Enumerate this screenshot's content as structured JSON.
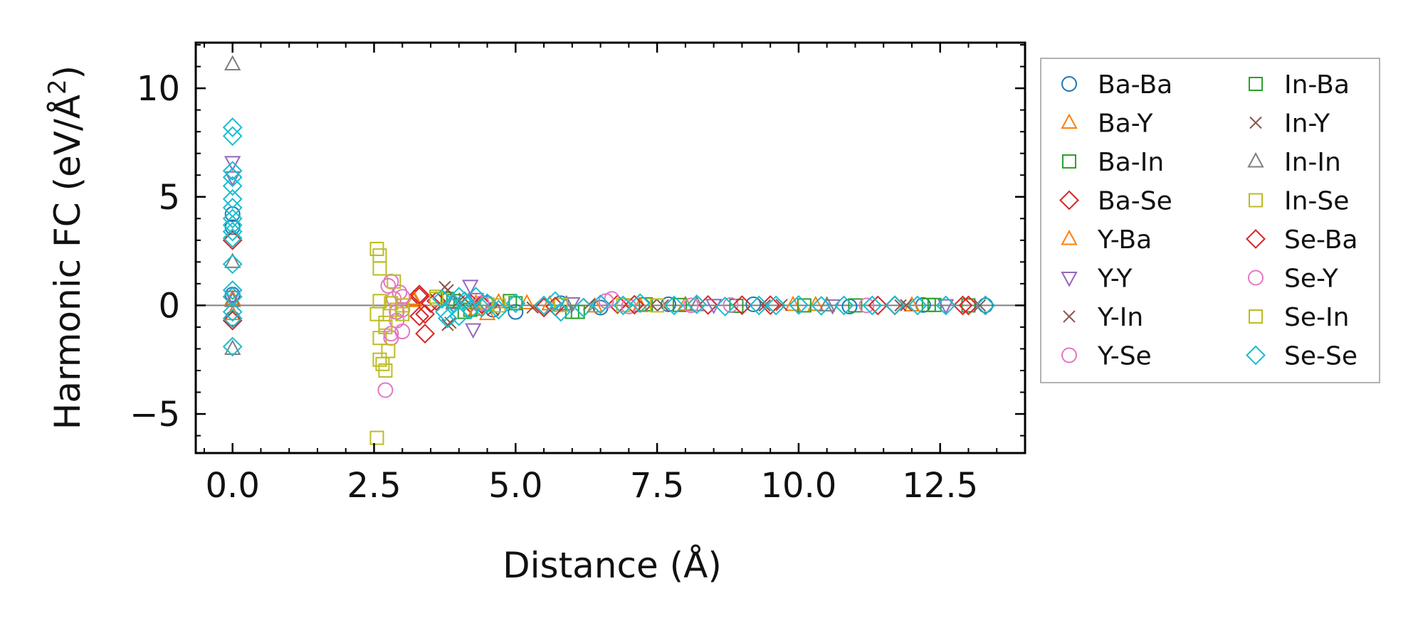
{
  "chart_data": {
    "type": "scatter",
    "title": "",
    "xlabel": "Distance (Å)",
    "ylabel_main": "Harmonic FC (eV/Å",
    "ylabel_sup": "2",
    "ylabel_close": ")",
    "xlim": [
      -0.65,
      14.0
    ],
    "ylim": [
      -6.8,
      12.1
    ],
    "xticks": [
      0.0,
      2.5,
      5.0,
      7.5,
      10.0,
      12.5
    ],
    "xtick_labels": [
      "0.0",
      "2.5",
      "5.0",
      "7.5",
      "10.0",
      "12.5"
    ],
    "yticks": [
      -5,
      0,
      5,
      10
    ],
    "ytick_labels": [
      "−5",
      "0",
      "5",
      "10"
    ],
    "zero_line": 0,
    "legend_position": "outside-right",
    "series": [
      {
        "name": "Ba-Ba",
        "marker": "circle",
        "color": "#1f77b4",
        "points": [
          [
            0,
            0.5
          ],
          [
            0,
            -0.6
          ],
          [
            0,
            4.2
          ],
          [
            0,
            3.6
          ],
          [
            4.5,
            0.1
          ],
          [
            4.6,
            -0.2
          ],
          [
            5.0,
            -0.3
          ],
          [
            5.8,
            0.1
          ],
          [
            6.5,
            -0.1
          ],
          [
            7.7,
            0.05
          ],
          [
            9.2,
            0.05
          ],
          [
            10.9,
            -0.05
          ],
          [
            12.2,
            0.02
          ],
          [
            13.3,
            0.0
          ]
        ]
      },
      {
        "name": "Ba-Y",
        "marker": "triangle-up",
        "color": "#ff7f0e",
        "points": [
          [
            0,
            0.3
          ],
          [
            0,
            -0.4
          ],
          [
            3.2,
            0.2
          ],
          [
            4.3,
            0.1
          ],
          [
            4.5,
            -0.4
          ],
          [
            5.2,
            0.1
          ],
          [
            6.4,
            -0.05
          ],
          [
            8.0,
            0.03
          ],
          [
            10.3,
            0.02
          ],
          [
            12.0,
            0.0
          ]
        ]
      },
      {
        "name": "Ba-In",
        "marker": "square",
        "color": "#2ca02c",
        "points": [
          [
            3.8,
            0.3
          ],
          [
            4.1,
            -0.3
          ],
          [
            4.9,
            0.2
          ],
          [
            6.0,
            -0.3
          ],
          [
            7.3,
            0.05
          ],
          [
            8.9,
            -0.02
          ],
          [
            11.0,
            0.0
          ],
          [
            12.4,
            0.02
          ],
          [
            13.0,
            0.0
          ]
        ]
      },
      {
        "name": "Ba-Se",
        "marker": "diamond",
        "color": "#d62728",
        "points": [
          [
            0,
            0.4
          ],
          [
            0,
            -0.7
          ],
          [
            0,
            3.0
          ],
          [
            3.3,
            0.4
          ],
          [
            3.3,
            -0.5
          ],
          [
            3.4,
            -1.3
          ],
          [
            3.6,
            0.2
          ],
          [
            4.2,
            0.1
          ],
          [
            5.5,
            -0.1
          ],
          [
            6.8,
            0.05
          ],
          [
            8.4,
            0.02
          ],
          [
            9.5,
            0.01
          ],
          [
            11.7,
            0.0
          ],
          [
            12.9,
            0.0
          ],
          [
            13.3,
            0.0
          ]
        ]
      },
      {
        "name": "Y-Ba",
        "marker": "triangle-up",
        "color": "#ff7f0e",
        "points": [
          [
            3.2,
            0.3
          ],
          [
            4.3,
            -0.2
          ],
          [
            4.7,
            0.15
          ],
          [
            5.6,
            0.05
          ],
          [
            7.2,
            -0.03
          ],
          [
            9.9,
            0.02
          ]
        ]
      },
      {
        "name": "Y-Y",
        "marker": "triangle-down",
        "color": "#9467bd",
        "points": [
          [
            0,
            6.6
          ],
          [
            0,
            5.9
          ],
          [
            0,
            0.4
          ],
          [
            4.2,
            0.9
          ],
          [
            4.25,
            -1.1
          ],
          [
            4.3,
            0.3
          ],
          [
            6.0,
            0.1
          ],
          [
            8.5,
            0.02
          ],
          [
            10.6,
            0.0
          ],
          [
            12.6,
            0.01
          ]
        ]
      },
      {
        "name": "Y-In",
        "marker": "x",
        "color": "#8c564b",
        "points": [
          [
            3.75,
            0.85
          ],
          [
            3.8,
            -0.9
          ],
          [
            4.0,
            0.2
          ],
          [
            4.6,
            -0.2
          ],
          [
            6.3,
            0.05
          ],
          [
            7.6,
            0.0
          ],
          [
            9.7,
            0.02
          ],
          [
            11.8,
            0.0
          ],
          [
            13.2,
            0.0
          ]
        ]
      },
      {
        "name": "Y-Se",
        "marker": "circle",
        "color": "#e377c2",
        "points": [
          [
            2.7,
            -3.9
          ],
          [
            2.8,
            1.1
          ],
          [
            2.8,
            -1.5
          ],
          [
            2.85,
            0.3
          ],
          [
            2.9,
            -0.7
          ],
          [
            2.95,
            0.6
          ],
          [
            3.0,
            -0.2
          ],
          [
            3.0,
            -1.2
          ],
          [
            4.4,
            0.1
          ],
          [
            6.7,
            0.3
          ],
          [
            7.0,
            -0.05
          ],
          [
            8.8,
            0.02
          ],
          [
            11.2,
            0.0
          ]
        ]
      },
      {
        "name": "In-Ba",
        "marker": "square",
        "color": "#2ca02c",
        "points": [
          [
            3.9,
            0.2
          ],
          [
            4.2,
            -0.2
          ],
          [
            5.0,
            0.1
          ],
          [
            6.1,
            -0.3
          ],
          [
            7.9,
            0.02
          ],
          [
            10.1,
            0.0
          ],
          [
            12.3,
            0.02
          ]
        ]
      },
      {
        "name": "In-Y",
        "marker": "x",
        "color": "#8c564b",
        "points": [
          [
            3.8,
            0.7
          ],
          [
            3.85,
            -0.8
          ],
          [
            4.1,
            0.3
          ],
          [
            5.3,
            -0.1
          ],
          [
            7.4,
            0.03
          ],
          [
            9.4,
            0.0
          ],
          [
            11.9,
            0.01
          ]
        ]
      },
      {
        "name": "In-In",
        "marker": "triangle-up",
        "color": "#7f7f7f",
        "points": [
          [
            0,
            11.1
          ],
          [
            0,
            2.0
          ],
          [
            0,
            -2.0
          ],
          [
            0,
            0.2
          ],
          [
            3.9,
            0.1
          ],
          [
            5.9,
            0.05
          ],
          [
            8.2,
            0.01
          ],
          [
            10.5,
            0.0
          ]
        ]
      },
      {
        "name": "In-Se",
        "marker": "square",
        "color": "#bcbd22",
        "points": [
          [
            2.55,
            2.6
          ],
          [
            2.6,
            2.3
          ],
          [
            2.55,
            -0.4
          ],
          [
            2.6,
            -1.5
          ],
          [
            2.6,
            -2.5
          ],
          [
            2.65,
            -2.7
          ],
          [
            2.55,
            -6.1
          ],
          [
            2.6,
            0.2
          ],
          [
            2.7,
            -0.8
          ],
          [
            2.75,
            -2.1
          ],
          [
            2.7,
            -3.0
          ],
          [
            2.85,
            1.1
          ],
          [
            2.9,
            -0.2
          ],
          [
            3.0,
            0.0
          ],
          [
            3.6,
            0.4
          ],
          [
            4.5,
            0.05
          ],
          [
            5.8,
            0.02
          ],
          [
            7.5,
            0.0
          ]
        ]
      },
      {
        "name": "Se-Ba",
        "marker": "diamond",
        "color": "#d62728",
        "points": [
          [
            3.3,
            0.5
          ],
          [
            3.4,
            -0.4
          ],
          [
            3.5,
            0.1
          ],
          [
            4.4,
            0.05
          ],
          [
            5.7,
            -0.05
          ],
          [
            7.1,
            0.03
          ],
          [
            9.0,
            0.01
          ],
          [
            11.4,
            0.0
          ],
          [
            13.0,
            0.0
          ]
        ]
      },
      {
        "name": "Se-Y",
        "marker": "circle",
        "color": "#e377c2",
        "points": [
          [
            2.75,
            0.9
          ],
          [
            2.8,
            -1.3
          ],
          [
            2.9,
            -0.3
          ],
          [
            3.0,
            0.4
          ],
          [
            4.4,
            0.1
          ],
          [
            6.6,
            0.2
          ],
          [
            8.1,
            0.0
          ]
        ]
      },
      {
        "name": "Se-In",
        "marker": "square",
        "color": "#bcbd22",
        "points": [
          [
            2.6,
            1.7
          ],
          [
            2.7,
            -1.0
          ],
          [
            2.8,
            0.1
          ],
          [
            3.0,
            -0.4
          ],
          [
            3.6,
            0.3
          ],
          [
            4.7,
            0.0
          ],
          [
            6.9,
            0.01
          ]
        ]
      },
      {
        "name": "Se-Se",
        "marker": "diamond",
        "color": "#17becf",
        "points": [
          [
            0,
            8.2
          ],
          [
            0,
            7.8
          ],
          [
            0,
            6.2
          ],
          [
            0,
            5.9
          ],
          [
            0,
            5.5
          ],
          [
            0,
            4.9
          ],
          [
            0,
            4.5
          ],
          [
            0,
            4.0
          ],
          [
            0,
            3.7
          ],
          [
            0,
            3.4
          ],
          [
            0,
            3.1
          ],
          [
            0,
            1.9
          ],
          [
            0,
            0.7
          ],
          [
            0,
            0.4
          ],
          [
            0,
            -0.3
          ],
          [
            0,
            -0.6
          ],
          [
            0,
            -1.9
          ],
          [
            3.7,
            0.3
          ],
          [
            3.75,
            -0.3
          ],
          [
            3.8,
            -0.6
          ],
          [
            3.9,
            0.1
          ],
          [
            4.0,
            0.4
          ],
          [
            4.0,
            -0.5
          ],
          [
            4.1,
            0.2
          ],
          [
            4.2,
            -0.2
          ],
          [
            4.3,
            0.4
          ],
          [
            4.4,
            -0.1
          ],
          [
            4.5,
            0.1
          ],
          [
            4.7,
            -0.2
          ],
          [
            5.0,
            0.1
          ],
          [
            5.5,
            0.0
          ],
          [
            5.7,
            0.2
          ],
          [
            5.8,
            -0.3
          ],
          [
            6.2,
            -0.1
          ],
          [
            6.5,
            0.05
          ],
          [
            6.9,
            0.0
          ],
          [
            7.2,
            0.1
          ],
          [
            7.8,
            0.0
          ],
          [
            8.2,
            0.05
          ],
          [
            8.7,
            -0.05
          ],
          [
            9.3,
            0.0
          ],
          [
            9.6,
            0.0
          ],
          [
            10.0,
            0.02
          ],
          [
            10.4,
            -0.02
          ],
          [
            10.8,
            0.0
          ],
          [
            11.3,
            0.0
          ],
          [
            11.7,
            0.01
          ],
          [
            12.1,
            0.0
          ],
          [
            12.6,
            0.0
          ],
          [
            13.3,
            0.0
          ]
        ]
      }
    ]
  }
}
